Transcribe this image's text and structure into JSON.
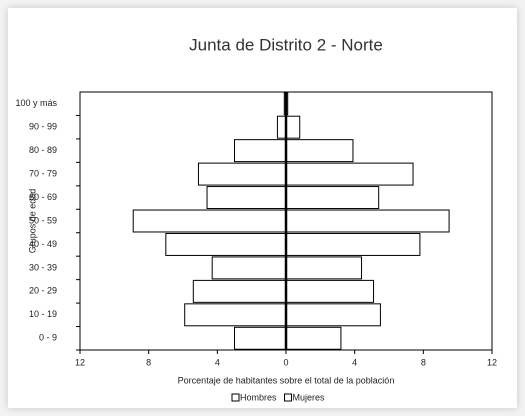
{
  "chart_data": {
    "type": "pyramid",
    "title": "Junta de Distrito 2 - Norte",
    "xlabel": "Porcentaje de habitantes sobre el total de la población",
    "ylabel": "Grupos de edad",
    "categories": [
      "0 - 9",
      "10 - 19",
      "20 - 29",
      "30 - 39",
      "40 - 49",
      "50 - 59",
      "60 - 69",
      "70 - 79",
      "80 - 89",
      "90 - 99",
      "100 y más"
    ],
    "series": [
      {
        "name": "Hombres",
        "color": "#ffffff",
        "values": [
          3.0,
          5.9,
          5.4,
          4.3,
          7.0,
          8.9,
          4.6,
          5.1,
          3.0,
          0.5,
          0.1
        ]
      },
      {
        "name": "Mujeres",
        "color": "#ffffff",
        "values": [
          3.2,
          5.5,
          5.1,
          4.4,
          7.8,
          9.5,
          5.4,
          7.4,
          3.9,
          0.8,
          0.1
        ]
      }
    ],
    "xlim": [
      -12,
      12
    ],
    "xticks": [
      {
        "value": -12,
        "label": "12"
      },
      {
        "value": -8,
        "label": "8"
      },
      {
        "value": -4,
        "label": "4"
      },
      0,
      4,
      8,
      12
    ],
    "grid": false,
    "legend": "bottom"
  }
}
